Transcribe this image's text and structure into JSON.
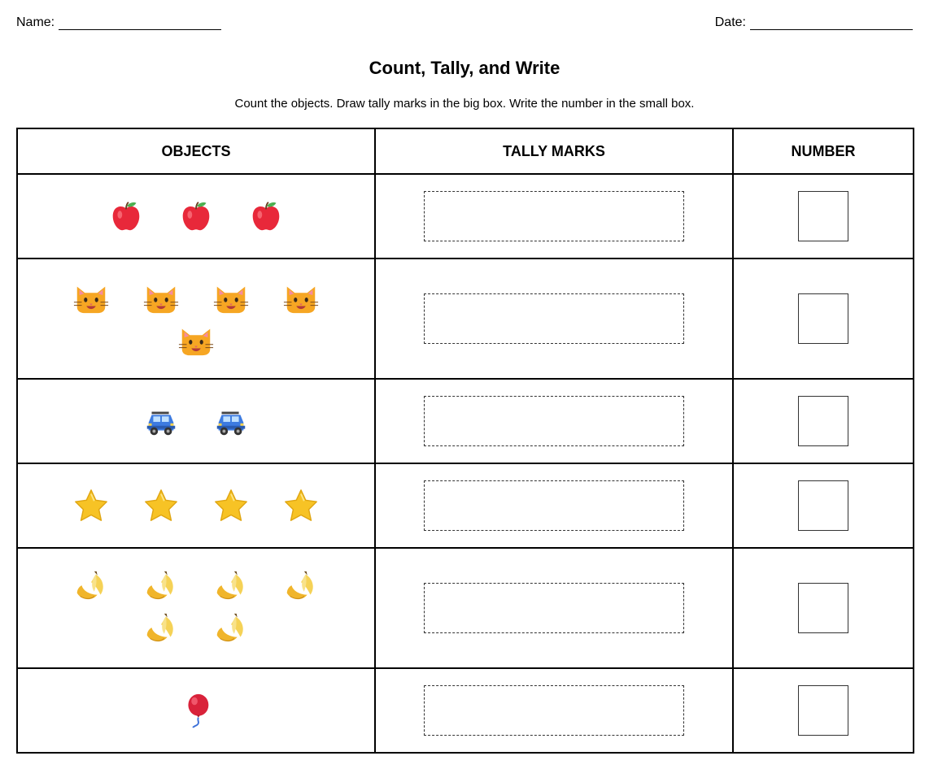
{
  "header": {
    "name_label": "Name:",
    "date_label": "Date:"
  },
  "title": "Count, Tally, and Write",
  "instructions": "Count the objects. Draw tally marks in the big box. Write the number in the small box.",
  "table": {
    "columns": [
      "OBJECTS",
      "TALLY MARKS",
      "NUMBER"
    ],
    "rows": [
      {
        "object": "apple-icon",
        "count": 3
      },
      {
        "object": "cat-face-icon",
        "count": 5
      },
      {
        "object": "car-icon",
        "count": 2
      },
      {
        "object": "star-icon",
        "count": 4
      },
      {
        "object": "banana-icon",
        "count": 6
      },
      {
        "object": "balloon-icon",
        "count": 1
      }
    ]
  },
  "colors": {
    "apple": "#e8283a",
    "cat": "#f6a623",
    "car": "#3d7be0",
    "star": "#f7c325",
    "banana": "#f5d257",
    "balloon": "#d9223a"
  }
}
